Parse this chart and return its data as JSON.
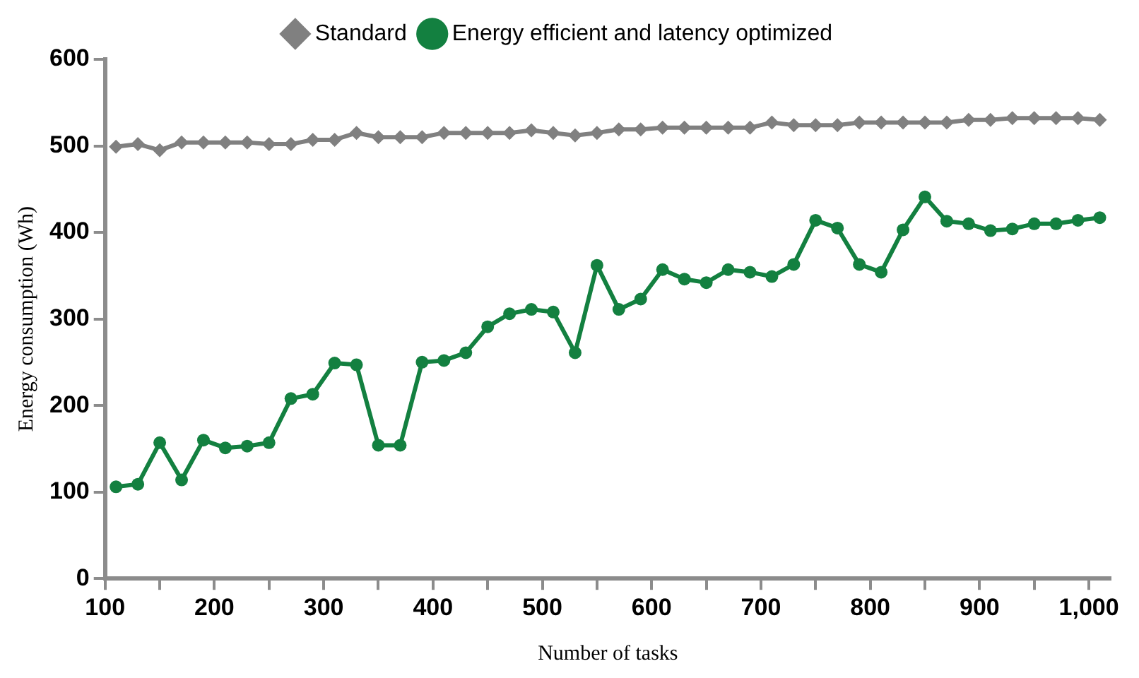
{
  "chart_data": {
    "type": "line",
    "xlabel": "Number of tasks",
    "ylabel": "Energy consumption (Wh)",
    "x": [
      110,
      130,
      150,
      170,
      190,
      210,
      230,
      250,
      270,
      290,
      310,
      330,
      350,
      370,
      390,
      410,
      430,
      450,
      470,
      490,
      510,
      530,
      550,
      570,
      590,
      610,
      630,
      650,
      670,
      690,
      710,
      730,
      750,
      770,
      790,
      810,
      830,
      850,
      870,
      890,
      910,
      930,
      950,
      970,
      990,
      1010
    ],
    "series": [
      {
        "name": "Standard",
        "color": "#808080",
        "marker": "diamond",
        "values": [
          499,
          502,
          495,
          504,
          504,
          504,
          504,
          502,
          502,
          507,
          507,
          515,
          510,
          510,
          510,
          515,
          515,
          515,
          515,
          518,
          515,
          512,
          515,
          519,
          519,
          521,
          521,
          521,
          521,
          521,
          527,
          524,
          524,
          524,
          527,
          527,
          527,
          527,
          527,
          530,
          530,
          532,
          532,
          532,
          532,
          530
        ]
      },
      {
        "name": "Energy efficient and latency optimized",
        "color": "#138040",
        "marker": "circle",
        "values": [
          106,
          109,
          157,
          114,
          160,
          151,
          153,
          157,
          208,
          213,
          249,
          247,
          154,
          154,
          250,
          252,
          261,
          291,
          306,
          311,
          308,
          261,
          362,
          311,
          323,
          357,
          346,
          342,
          357,
          354,
          349,
          363,
          414,
          405,
          363,
          354,
          403,
          441,
          413,
          410,
          402,
          404,
          410,
          410,
          414,
          417
        ]
      }
    ],
    "xlim": [
      100,
      1020
    ],
    "xticks": [
      100,
      {
        "value": 150,
        "label": null
      },
      200,
      {
        "value": 250,
        "label": null
      },
      300,
      {
        "value": 350,
        "label": null
      },
      400,
      {
        "value": 450,
        "label": null
      },
      500,
      {
        "value": 550,
        "label": null
      },
      600,
      {
        "value": 650,
        "label": null
      },
      700,
      {
        "value": 750,
        "label": null
      },
      800,
      {
        "value": 850,
        "label": null
      },
      900,
      {
        "value": 950,
        "label": null
      },
      {
        "value": 1000,
        "label": "1,000"
      }
    ],
    "ylim": [
      0,
      600
    ],
    "yticks": [
      0,
      100,
      200,
      300,
      400,
      500,
      600
    ],
    "grid": false,
    "legend": "top",
    "line_style": "solid"
  }
}
